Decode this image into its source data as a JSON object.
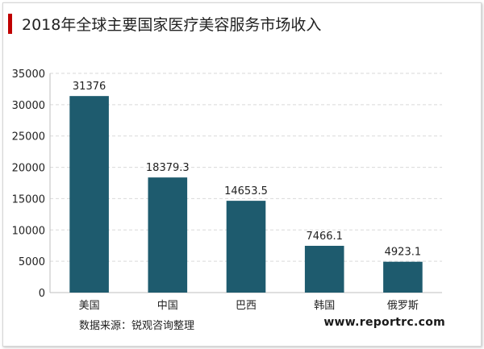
{
  "title": "2018年全球主要国家医疗美容服务市场收入",
  "source": "数据来源：锐观咨询整理",
  "website": "www.reportrc.com",
  "colors": {
    "bar": "#1e5b6e",
    "title_accent": "#c00000",
    "grid": "#d9d9d9",
    "axis": "#bfbfbf"
  },
  "chart_data": {
    "type": "bar",
    "title": "2018年全球主要国家医疗美容服务市场收入",
    "categories": [
      "美国",
      "中国",
      "巴西",
      "韩国",
      "俄罗斯"
    ],
    "values": [
      31376,
      18379.3,
      14653.5,
      7466.1,
      4923.1
    ],
    "value_labels": [
      "31376",
      "18379.3",
      "14653.5",
      "7466.1",
      "4923.1"
    ],
    "yticks": [
      "0",
      "5000",
      "10000",
      "15000",
      "20000",
      "25000",
      "30000",
      "35000"
    ],
    "ylim": [
      0,
      35000
    ],
    "xlabel": "",
    "ylabel": "",
    "grid": true
  }
}
